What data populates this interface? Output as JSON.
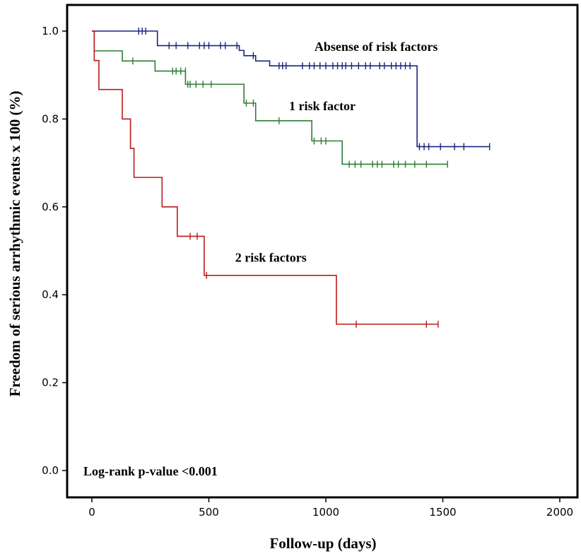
{
  "chart_data": {
    "type": "line",
    "step": true,
    "xlabel": "Follow-up (days)",
    "ylabel": "Freedom of serious arrhythmic events x 100 (%)",
    "xlim": [
      -100,
      2000
    ],
    "ylim": [
      -0.05,
      1.06
    ],
    "xticks": [
      "0",
      "500",
      "1000",
      "1500",
      "2000"
    ],
    "yticks": [
      "0.0",
      "0.2",
      "0.4",
      "0.6",
      "0.8",
      "1.0"
    ],
    "grid": false,
    "legend": "none",
    "annotation": "Log-rank p-value <0.001",
    "series": [
      {
        "name": "Absense of risk factors",
        "color": "#1a237e",
        "steps": [
          [
            0,
            1.0
          ],
          [
            280,
            0.967
          ],
          [
            630,
            0.956
          ],
          [
            650,
            0.944
          ],
          [
            700,
            0.932
          ],
          [
            760,
            0.921
          ],
          [
            1380,
            0.921
          ],
          [
            1390,
            0.737
          ],
          [
            1700,
            0.737
          ]
        ],
        "censored": [
          [
            200,
            1.0
          ],
          [
            215,
            1.0
          ],
          [
            230,
            1.0
          ],
          [
            330,
            0.967
          ],
          [
            360,
            0.967
          ],
          [
            410,
            0.967
          ],
          [
            460,
            0.967
          ],
          [
            480,
            0.967
          ],
          [
            500,
            0.967
          ],
          [
            550,
            0.967
          ],
          [
            570,
            0.967
          ],
          [
            620,
            0.967
          ],
          [
            690,
            0.944
          ],
          [
            800,
            0.921
          ],
          [
            815,
            0.921
          ],
          [
            830,
            0.921
          ],
          [
            900,
            0.921
          ],
          [
            930,
            0.921
          ],
          [
            950,
            0.921
          ],
          [
            975,
            0.921
          ],
          [
            1000,
            0.921
          ],
          [
            1030,
            0.921
          ],
          [
            1050,
            0.921
          ],
          [
            1070,
            0.921
          ],
          [
            1085,
            0.921
          ],
          [
            1110,
            0.921
          ],
          [
            1140,
            0.921
          ],
          [
            1170,
            0.921
          ],
          [
            1190,
            0.921
          ],
          [
            1230,
            0.921
          ],
          [
            1250,
            0.921
          ],
          [
            1280,
            0.921
          ],
          [
            1300,
            0.921
          ],
          [
            1320,
            0.921
          ],
          [
            1340,
            0.921
          ],
          [
            1360,
            0.921
          ],
          [
            1400,
            0.737
          ],
          [
            1420,
            0.737
          ],
          [
            1440,
            0.737
          ],
          [
            1490,
            0.737
          ],
          [
            1550,
            0.737
          ],
          [
            1590,
            0.737
          ],
          [
            1700,
            0.737
          ]
        ]
      },
      {
        "name": "1 risk factor",
        "color": "#2e7d32",
        "steps": [
          [
            0,
            1.0
          ],
          [
            10,
            0.955
          ],
          [
            130,
            0.932
          ],
          [
            270,
            0.909
          ],
          [
            400,
            0.879
          ],
          [
            650,
            0.836
          ],
          [
            700,
            0.796
          ],
          [
            940,
            0.75
          ],
          [
            1070,
            0.697
          ],
          [
            1520,
            0.697
          ]
        ],
        "censored": [
          [
            175,
            0.932
          ],
          [
            345,
            0.909
          ],
          [
            360,
            0.909
          ],
          [
            380,
            0.909
          ],
          [
            400,
            0.909
          ],
          [
            410,
            0.879
          ],
          [
            420,
            0.879
          ],
          [
            445,
            0.879
          ],
          [
            475,
            0.879
          ],
          [
            510,
            0.879
          ],
          [
            660,
            0.836
          ],
          [
            690,
            0.836
          ],
          [
            800,
            0.796
          ],
          [
            950,
            0.75
          ],
          [
            980,
            0.75
          ],
          [
            1000,
            0.75
          ],
          [
            1100,
            0.697
          ],
          [
            1125,
            0.697
          ],
          [
            1150,
            0.697
          ],
          [
            1200,
            0.697
          ],
          [
            1220,
            0.697
          ],
          [
            1240,
            0.697
          ],
          [
            1290,
            0.697
          ],
          [
            1310,
            0.697
          ],
          [
            1340,
            0.697
          ],
          [
            1380,
            0.697
          ],
          [
            1430,
            0.697
          ],
          [
            1520,
            0.697
          ]
        ]
      },
      {
        "name": "2 risk factors",
        "color": "#b71c1c",
        "steps": [
          [
            0,
            1.0
          ],
          [
            10,
            0.933
          ],
          [
            30,
            0.867
          ],
          [
            130,
            0.8
          ],
          [
            165,
            0.733
          ],
          [
            180,
            0.667
          ],
          [
            300,
            0.6
          ],
          [
            365,
            0.533
          ],
          [
            480,
            0.444
          ],
          [
            1045,
            0.333
          ],
          [
            1480,
            0.333
          ]
        ],
        "censored": [
          [
            420,
            0.533
          ],
          [
            450,
            0.533
          ],
          [
            490,
            0.444
          ],
          [
            1130,
            0.333
          ],
          [
            1430,
            0.333
          ],
          [
            1480,
            0.333
          ]
        ]
      }
    ],
    "series_labels": [
      {
        "series": 0,
        "text": "Absense of risk factors",
        "x": 1215,
        "y": 0.955
      },
      {
        "series": 1,
        "text": "1 risk factor",
        "x": 985,
        "y": 0.82
      },
      {
        "series": 2,
        "text": "2 risk factors",
        "x": 765,
        "y": 0.475
      }
    ]
  }
}
